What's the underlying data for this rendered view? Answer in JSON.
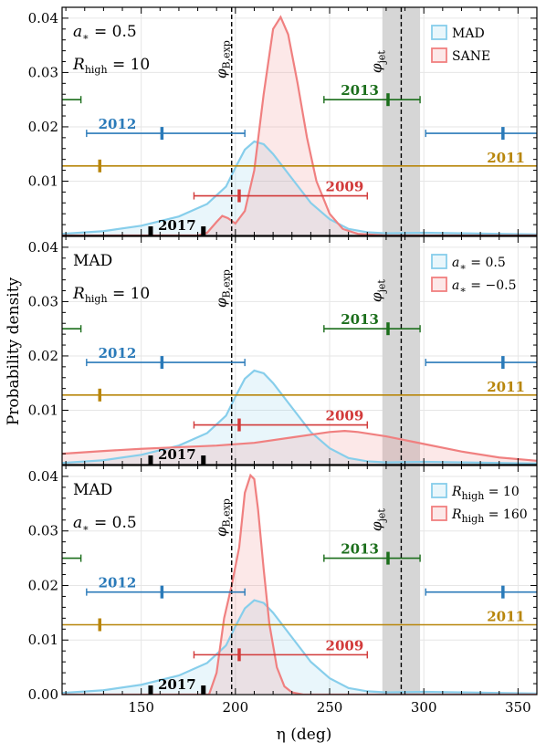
{
  "y_axis_title": "Probability density",
  "x_axis_title": "η (deg)",
  "markers": {
    "phi_B_exp": {
      "label": "φB,exp",
      "value": 198
    },
    "phi_jet": {
      "label": "φjet",
      "value": 288,
      "band": [
        278,
        298
      ]
    }
  },
  "years": [
    {
      "year": "2011",
      "center": 128,
      "low": null,
      "high": null,
      "y": 0.0128,
      "color": "#b8860b",
      "full_width": true
    },
    {
      "year": "2012",
      "center": 161,
      "low": 121,
      "high": 205,
      "y": 0.0188,
      "color": "#2a7ab9",
      "wrap_center": 342
    },
    {
      "year": "2013",
      "center": 281,
      "low": 247,
      "high": 298,
      "y": 0.025,
      "color": "#1b6e1b",
      "wrap_left_end": 118
    },
    {
      "year": "2009",
      "center": 202,
      "low": 178,
      "high": 270,
      "y": 0.0073,
      "color": "#d23a3a"
    },
    {
      "year": "2017",
      "center": 169,
      "low": 155,
      "high": 183,
      "y": 0.0,
      "color": "#000000"
    }
  ],
  "chart_data": [
    {
      "type": "area",
      "xlim": [
        108,
        360
      ],
      "ylim": [
        0,
        0.042
      ],
      "xticks": [
        150,
        200,
        250,
        300,
        350
      ],
      "yticks": [
        0.01,
        0.02,
        0.03,
        0.04
      ],
      "yticklabels": [
        "0.01",
        "0.02",
        "0.03",
        "0.04"
      ],
      "annotations": [
        "a∗ = 0.5",
        "Rhigh = 10"
      ],
      "series": [
        {
          "name": "MAD",
          "color": "#87ceeb",
          "x": [
            108,
            130,
            150,
            170,
            185,
            195,
            200,
            205,
            210,
            215,
            220,
            230,
            240,
            250,
            260,
            270,
            280,
            300,
            320,
            340,
            360
          ],
          "values": [
            0.0003,
            0.0008,
            0.0018,
            0.0035,
            0.0058,
            0.009,
            0.0125,
            0.0158,
            0.0173,
            0.0168,
            0.015,
            0.0105,
            0.006,
            0.003,
            0.0012,
            0.0006,
            0.0004,
            0.0005,
            0.0004,
            0.0003,
            0.0002
          ]
        },
        {
          "name": "SANE",
          "color": "#f08080",
          "x": [
            108,
            180,
            185,
            190,
            193,
            196,
            200,
            205,
            210,
            215,
            220,
            224,
            228,
            233,
            238,
            243,
            250,
            257,
            265,
            280,
            360
          ],
          "values": [
            0,
            0,
            0.0005,
            0.0025,
            0.0036,
            0.0032,
            0.0022,
            0.0045,
            0.012,
            0.026,
            0.038,
            0.0402,
            0.037,
            0.028,
            0.018,
            0.01,
            0.004,
            0.0012,
            0.0003,
            0,
            0
          ]
        }
      ]
    },
    {
      "type": "area",
      "xlim": [
        108,
        360
      ],
      "ylim": [
        0,
        0.042
      ],
      "xticks": [
        150,
        200,
        250,
        300,
        350
      ],
      "yticks": [
        0.01,
        0.02,
        0.03,
        0.04
      ],
      "yticklabels": [
        "0.01",
        "0.02",
        "0.03",
        "0.04"
      ],
      "annotations": [
        "MAD",
        "Rhigh = 10"
      ],
      "series": [
        {
          "name": "a∗ = 0.5",
          "color": "#87ceeb",
          "x": [
            108,
            130,
            150,
            170,
            185,
            195,
            200,
            205,
            210,
            215,
            220,
            230,
            240,
            250,
            260,
            270,
            280,
            300,
            320,
            340,
            360
          ],
          "values": [
            0.0003,
            0.0008,
            0.0018,
            0.0035,
            0.0058,
            0.009,
            0.0125,
            0.0158,
            0.0173,
            0.0168,
            0.015,
            0.0105,
            0.006,
            0.003,
            0.0012,
            0.0006,
            0.0004,
            0.0005,
            0.0004,
            0.0003,
            0.0002
          ]
        },
        {
          "name": "a∗ = −0.5",
          "color": "#f08080",
          "x": [
            108,
            130,
            150,
            170,
            190,
            210,
            230,
            250,
            258,
            265,
            280,
            300,
            320,
            340,
            360
          ],
          "values": [
            0.002,
            0.0025,
            0.0029,
            0.0032,
            0.0035,
            0.004,
            0.005,
            0.006,
            0.0062,
            0.006,
            0.0052,
            0.0038,
            0.0024,
            0.0013,
            0.0007
          ]
        }
      ]
    },
    {
      "type": "area",
      "xlim": [
        108,
        360
      ],
      "ylim": [
        0,
        0.042
      ],
      "xticks": [
        150,
        200,
        250,
        300,
        350
      ],
      "yticks": [
        0,
        0.01,
        0.02,
        0.03,
        0.04
      ],
      "yticklabels": [
        "0.00",
        "0.01",
        "0.02",
        "0.03",
        "0.04"
      ],
      "annotations": [
        "MAD",
        "a∗ = 0.5"
      ],
      "series": [
        {
          "name": "Rhigh = 10",
          "color": "#87ceeb",
          "x": [
            108,
            130,
            150,
            170,
            185,
            195,
            200,
            205,
            210,
            215,
            220,
            230,
            240,
            250,
            260,
            270,
            280,
            300,
            320,
            340,
            360
          ],
          "values": [
            0.0003,
            0.0008,
            0.0018,
            0.0035,
            0.0058,
            0.009,
            0.0125,
            0.0158,
            0.0173,
            0.0168,
            0.015,
            0.0105,
            0.006,
            0.003,
            0.0012,
            0.0006,
            0.0004,
            0.0005,
            0.0004,
            0.0003,
            0.0002
          ]
        },
        {
          "name": "Rhigh = 160",
          "color": "#f08080",
          "x": [
            108,
            186,
            190,
            194,
            198,
            202,
            205,
            208,
            210,
            212,
            215,
            218,
            222,
            226,
            230,
            236,
            360
          ],
          "values": [
            0,
            0,
            0.004,
            0.014,
            0.02,
            0.027,
            0.037,
            0.0402,
            0.0395,
            0.034,
            0.023,
            0.013,
            0.005,
            0.0015,
            0.0004,
            0,
            0
          ]
        }
      ]
    }
  ]
}
